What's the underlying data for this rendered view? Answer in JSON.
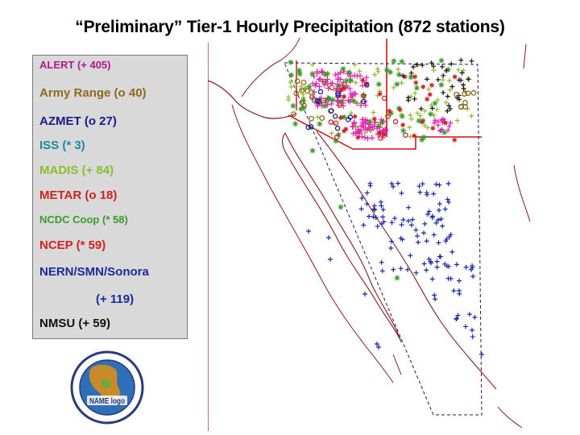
{
  "title": "“Preliminary” Tier-1 Hourly Precipitation (872 stations)",
  "legend": [
    {
      "label": "ALERT (+ 405)",
      "color": "#b0178a",
      "size": 13
    },
    {
      "label": "Army Range (o 40)",
      "color": "#8e6a1e",
      "size": 15
    },
    {
      "label": "AZMET (o 27)",
      "color": "#1a1a8c",
      "size": 15
    },
    {
      "label": "ISS (* 3)",
      "color": "#1e8a9a",
      "size": 15
    },
    {
      "label": "MADIS (+ 84)",
      "color": "#8cbd2a",
      "size": 15
    },
    {
      "label": "METAR (o 18)",
      "color": "#cc2222",
      "size": 15
    },
    {
      "label": "NCDC Coop (* 58)",
      "color": "#3a9a2a",
      "size": 13
    },
    {
      "label": "NCEP (* 59)",
      "color": "#d42020",
      "size": 15
    },
    {
      "label": "NERN/SMN/Sonora",
      "color": "#1a2a9a",
      "size": 15
    },
    {
      "label": "(+ 119)",
      "color": "#1a2a9a",
      "size": 15
    },
    {
      "label": "NMSU (+ 59)",
      "color": "#111111",
      "size": 15
    }
  ],
  "colors": {
    "border": "#8b1a1a",
    "state_border": "#cc1111",
    "domain_box": "#1a1a6a",
    "alert": "#e020b0",
    "madis": "#8cbd2a",
    "coop": "#3a9a2a",
    "sonora": "#1a2aaa",
    "nmsu": "#111111",
    "army": "#8e6a1e",
    "azmet": "#1a1a8c",
    "metar": "#cc2222",
    "ncep": "#d42020"
  },
  "logo": {
    "name": "NAME logo"
  }
}
